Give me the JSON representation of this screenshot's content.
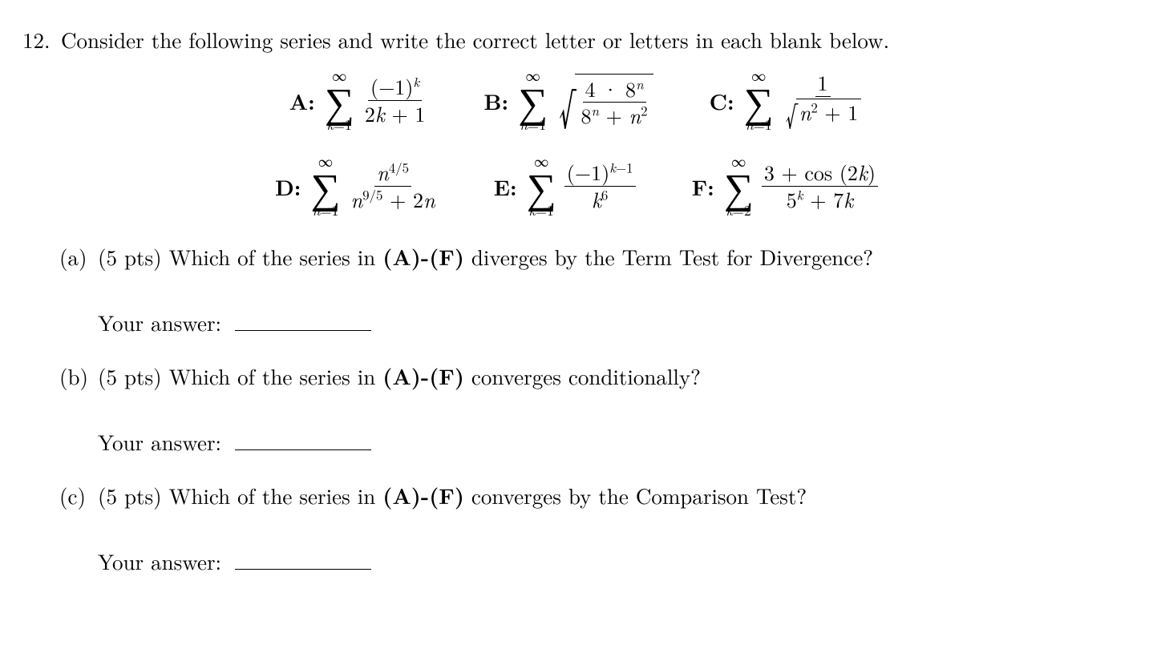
{
  "problem": {
    "number": "12.",
    "intro": "Consider the following series and write the correct letter or letters in each blank below."
  },
  "series": {
    "A": {
      "label": "A:",
      "top": "∞",
      "bot_var": "k",
      "bot_from": "=1",
      "num_base": "(−1)",
      "num_exp": "k",
      "den_a": "2",
      "den_var": "k",
      "den_b": " + 1"
    },
    "B": {
      "label": "B:",
      "top": "∞",
      "bot_var": "n",
      "bot_from": "=1",
      "num_a": "4 · 8",
      "num_exp": "n",
      "den_a": "8",
      "den_exp1": "n",
      "den_b": " + ",
      "den_var": "n",
      "den_exp2": "2"
    },
    "C": {
      "label": "C:",
      "top": "∞",
      "bot_var": "n",
      "bot_from": "=1",
      "num": "1",
      "den_var": "n",
      "den_exp": "2",
      "den_b": " + 1"
    },
    "D": {
      "label": "D:",
      "top": "∞",
      "bot_var": "n",
      "bot_from": "=1",
      "num_var": "n",
      "num_exp": "4/5",
      "den_var1": "n",
      "den_exp": "9/5",
      "den_b": " + 2",
      "den_var2": "n"
    },
    "E": {
      "label": "E:",
      "top": "∞",
      "bot_var": "k",
      "bot_from": "=1",
      "num_base": "(−1)",
      "num_exp_a": "k",
      "num_exp_b": "−1",
      "den_var": "k",
      "den_exp": "6"
    },
    "F": {
      "label": "F:",
      "top": "∞",
      "bot_var": "k",
      "bot_from": "=2",
      "num_a": "3 + cos (2",
      "num_var": "k",
      "num_b": ")",
      "den_a": "5",
      "den_exp": "k",
      "den_b": " + 7",
      "den_var": "k"
    }
  },
  "parts": {
    "a": {
      "label": "(a)",
      "pts": "(5 pts) ",
      "q1": "Which of the series in ",
      "bold": "(A)-(F)",
      "q2": " diverges by the Term Test for Divergence?"
    },
    "b": {
      "label": "(b)",
      "pts": "(5 pts) ",
      "q1": "Which of the series in ",
      "bold": "(A)-(F)",
      "q2": " converges conditionally?"
    },
    "c": {
      "label": "(c)",
      "pts": "(5 pts) ",
      "q1": "Which of the series in ",
      "bold": "(A)-(F)",
      "q2": " converges by the Comparison Test?"
    }
  },
  "answer_label": "Your answer:"
}
